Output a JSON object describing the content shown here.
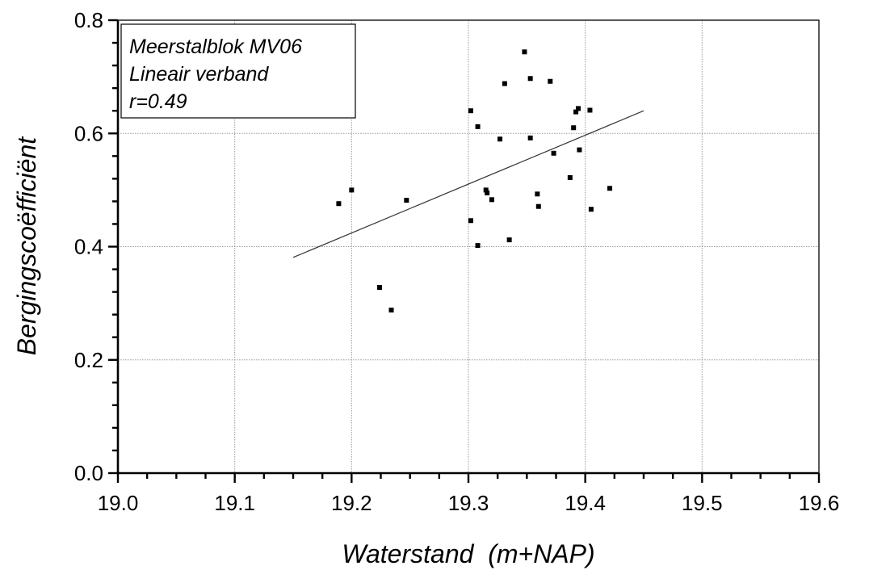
{
  "chart_data": {
    "type": "scatter",
    "xlabel": "Waterstand  (m+NAP)",
    "ylabel": "Bergingscoëfficiënt",
    "xlim": [
      19.0,
      19.6
    ],
    "ylim": [
      0.0,
      0.8
    ],
    "x_ticks": [
      19.0,
      19.1,
      19.2,
      19.3,
      19.4,
      19.5,
      19.6
    ],
    "x_tick_labels": [
      "19.0",
      "19.1",
      "19.2",
      "19.3",
      "19.4",
      "19.5",
      "19.6"
    ],
    "y_ticks": [
      0.0,
      0.2,
      0.4,
      0.6,
      0.8
    ],
    "y_tick_labels": [
      "0.0",
      "0.2",
      "0.4",
      "0.6",
      "0.8"
    ],
    "grid": true,
    "legend_position": "top-left",
    "legend_lines": [
      "Meerstalblok MV06",
      "Lineair verband",
      "r=0.49"
    ],
    "points": [
      {
        "x": 19.189,
        "y": 0.476
      },
      {
        "x": 19.2,
        "y": 0.5
      },
      {
        "x": 19.224,
        "y": 0.328
      },
      {
        "x": 19.234,
        "y": 0.288
      },
      {
        "x": 19.247,
        "y": 0.482
      },
      {
        "x": 19.302,
        "y": 0.64
      },
      {
        "x": 19.302,
        "y": 0.446
      },
      {
        "x": 19.308,
        "y": 0.612
      },
      {
        "x": 19.308,
        "y": 0.402
      },
      {
        "x": 19.315,
        "y": 0.5
      },
      {
        "x": 19.316,
        "y": 0.495
      },
      {
        "x": 19.32,
        "y": 0.483
      },
      {
        "x": 19.327,
        "y": 0.59
      },
      {
        "x": 19.331,
        "y": 0.688
      },
      {
        "x": 19.335,
        "y": 0.412
      },
      {
        "x": 19.348,
        "y": 0.744
      },
      {
        "x": 19.353,
        "y": 0.697
      },
      {
        "x": 19.353,
        "y": 0.592
      },
      {
        "x": 19.359,
        "y": 0.493
      },
      {
        "x": 19.36,
        "y": 0.471
      },
      {
        "x": 19.37,
        "y": 0.692
      },
      {
        "x": 19.373,
        "y": 0.565
      },
      {
        "x": 19.387,
        "y": 0.522
      },
      {
        "x": 19.39,
        "y": 0.61
      },
      {
        "x": 19.392,
        "y": 0.638
      },
      {
        "x": 19.394,
        "y": 0.644
      },
      {
        "x": 19.395,
        "y": 0.571
      },
      {
        "x": 19.404,
        "y": 0.641
      },
      {
        "x": 19.405,
        "y": 0.466
      },
      {
        "x": 19.421,
        "y": 0.503
      }
    ],
    "fit_line": {
      "x": [
        19.15,
        19.45
      ],
      "y": [
        0.381,
        0.64
      ]
    }
  }
}
